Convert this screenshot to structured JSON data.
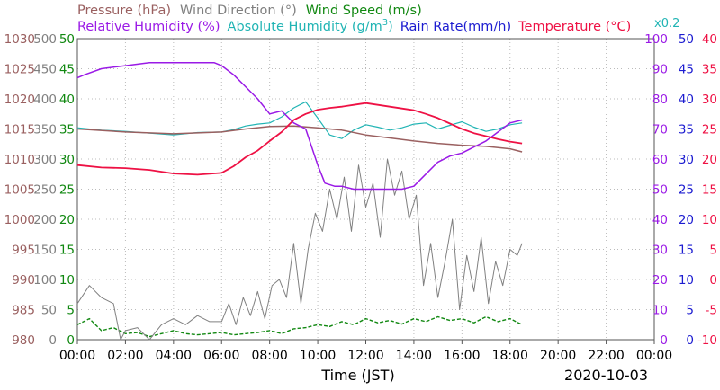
{
  "chart_data": {
    "type": "line",
    "date": "2020-10-03",
    "xlabel": "Time (JST)",
    "x_ticks": [
      "00:00",
      "02:00",
      "04:00",
      "06:00",
      "08:00",
      "10:00",
      "12:00",
      "14:00",
      "16:00",
      "18:00",
      "20:00",
      "22:00",
      "00:00"
    ],
    "x_range_hours": [
      0,
      24
    ],
    "legend_row1": [
      {
        "label": "Pressure (hPa)",
        "color": "#9a6060"
      },
      {
        "label": "Wind Direction (°)",
        "color": "#808080"
      },
      {
        "label": "Wind Speed (m/s)",
        "color": "#118811"
      }
    ],
    "legend_row2": [
      {
        "label": "Relative Humidity (%)",
        "color": "#9a1ae6"
      },
      {
        "label": "Absolute Humidity (g/m",
        "sup": "3",
        "close": ")",
        "color": "#20b4b4"
      },
      {
        "label": "Rain Rate(mm/h)",
        "color": "#1c1cd0"
      },
      {
        "label": "Temperature (°C)",
        "color": "#ee1144"
      }
    ],
    "rain_scale_note": "x0.2",
    "axes": [
      {
        "name": "pressure",
        "color": "#9a6060",
        "ticks": [
          "1030",
          "1025",
          "1020",
          "1015",
          "1010",
          "1005",
          "1000",
          "995",
          "990",
          "985",
          "980"
        ],
        "range": [
          980,
          1030
        ]
      },
      {
        "name": "wind-direction",
        "color": "#808080",
        "ticks": [
          "500",
          "450",
          "400",
          "350",
          "300",
          "250",
          "200",
          "150",
          "100",
          "50",
          "0"
        ],
        "range": [
          0,
          500
        ]
      },
      {
        "name": "wind-speed",
        "color": "#118811",
        "ticks": [
          "50",
          "45",
          "40",
          "35",
          "30",
          "25",
          "20",
          "15",
          "10",
          "5",
          "0"
        ],
        "range": [
          0,
          50
        ]
      },
      {
        "name": "relative-humidity",
        "color": "#9a1ae6",
        "ticks": [
          "100",
          "90",
          "80",
          "70",
          "60",
          "50",
          "40",
          "30",
          "20",
          "10",
          "0"
        ],
        "range": [
          0,
          100
        ]
      },
      {
        "name": "rain-rate",
        "color": "#1c1cd0",
        "ticks": [
          "50",
          "45",
          "40",
          "35",
          "30",
          "25",
          "20",
          "15",
          "10",
          "5",
          "0"
        ],
        "range": [
          0,
          50
        ]
      },
      {
        "name": "temperature",
        "color": "#ee1144",
        "ticks": [
          "40",
          "35",
          "30",
          "25",
          "20",
          "15",
          "10",
          "5",
          "0",
          "-5",
          "-10"
        ],
        "range": [
          -10,
          40
        ]
      }
    ],
    "series": [
      {
        "name": "Pressure (hPa)",
        "axis": "pressure",
        "color": "#9a6060",
        "x": [
          0,
          2,
          4,
          6,
          7,
          8,
          9,
          10,
          11,
          12,
          13,
          14,
          15,
          16,
          17,
          18,
          18.5
        ],
        "y": [
          1015.0,
          1014.5,
          1014.2,
          1014.5,
          1015.0,
          1015.4,
          1015.5,
          1015.2,
          1014.8,
          1014.0,
          1013.5,
          1013.0,
          1012.6,
          1012.3,
          1012.1,
          1011.7,
          1011.2
        ]
      },
      {
        "name": "Temperature (°C)",
        "axis": "temperature",
        "color": "#ee1144",
        "x": [
          0,
          1,
          2,
          3,
          4,
          5,
          6,
          6.5,
          7,
          7.5,
          8,
          8.5,
          9,
          9.5,
          10,
          10.5,
          11,
          11.5,
          12,
          12.5,
          13,
          13.5,
          14,
          14.5,
          15,
          15.5,
          16,
          16.5,
          17,
          17.5,
          18,
          18.5
        ],
        "y": [
          19.0,
          18.6,
          18.5,
          18.2,
          17.6,
          17.4,
          17.7,
          18.8,
          20.3,
          21.4,
          23.0,
          24.5,
          26.5,
          27.5,
          28.2,
          28.5,
          28.7,
          29.0,
          29.3,
          29.0,
          28.7,
          28.4,
          28.1,
          27.5,
          26.8,
          25.9,
          25.0,
          24.3,
          23.8,
          23.3,
          22.9,
          22.6
        ]
      },
      {
        "name": "Relative Humidity (%)",
        "axis": "relative-humidity",
        "color": "#9a1ae6",
        "x": [
          0,
          0.3,
          1,
          2,
          3,
          4,
          5,
          5.7,
          6,
          6.5,
          7,
          7.5,
          8,
          8.5,
          9,
          9.5,
          10,
          10.3,
          10.7,
          11,
          11.5,
          12,
          12.5,
          13,
          13.5,
          14,
          14.5,
          15,
          15.5,
          16,
          16.5,
          17,
          17.5,
          18,
          18.5
        ],
        "y": [
          87,
          88,
          90,
          91,
          92,
          92,
          92,
          92,
          91,
          88,
          84,
          80,
          75,
          76,
          72,
          70,
          58,
          52,
          51,
          51,
          50,
          50,
          50,
          50,
          50,
          51,
          55,
          59,
          61,
          62,
          64,
          66,
          69,
          72,
          73
        ]
      },
      {
        "name": "Absolute Humidity (g/m3)",
        "axis": "wind-speed",
        "color": "#20b4b4",
        "x": [
          0,
          1,
          2,
          3,
          4,
          5,
          6,
          6.5,
          7,
          7.5,
          8,
          8.5,
          9,
          9.5,
          10,
          10.5,
          11,
          11.5,
          12,
          12.5,
          13,
          13.5,
          14,
          14.5,
          15,
          15.5,
          16,
          16.5,
          17,
          17.5,
          18,
          18.5
        ],
        "y": [
          35.2,
          34.8,
          34.6,
          34.3,
          34.0,
          34.4,
          34.5,
          34.9,
          35.5,
          35.8,
          36.0,
          37.0,
          38.5,
          39.5,
          36.8,
          34.0,
          33.4,
          34.8,
          35.7,
          35.3,
          34.8,
          35.2,
          35.8,
          36.0,
          35.0,
          35.6,
          36.2,
          35.3,
          34.6,
          35.0,
          35.7,
          36.0
        ]
      },
      {
        "name": "Wind Direction (°)",
        "axis": "wind-direction",
        "color": "#808080",
        "x": [
          0,
          0.5,
          1,
          1.5,
          1.8,
          2,
          2.5,
          3,
          3.5,
          4,
          4.5,
          5,
          5.5,
          6,
          6.3,
          6.6,
          6.9,
          7.2,
          7.5,
          7.8,
          8.1,
          8.4,
          8.7,
          9,
          9.3,
          9.6,
          9.9,
          10.2,
          10.5,
          10.8,
          11.1,
          11.4,
          11.7,
          12,
          12.3,
          12.6,
          12.9,
          13.2,
          13.5,
          13.8,
          14.1,
          14.4,
          14.7,
          15,
          15.3,
          15.6,
          15.9,
          16.2,
          16.5,
          16.8,
          17.1,
          17.4,
          17.7,
          18,
          18.3,
          18.5
        ],
        "y": [
          60,
          90,
          70,
          60,
          0,
          15,
          20,
          0,
          25,
          35,
          25,
          40,
          30,
          30,
          60,
          25,
          70,
          40,
          80,
          35,
          90,
          100,
          70,
          160,
          60,
          150,
          210,
          180,
          250,
          200,
          270,
          180,
          290,
          220,
          260,
          170,
          300,
          240,
          280,
          200,
          240,
          90,
          160,
          70,
          130,
          200,
          50,
          140,
          80,
          170,
          60,
          130,
          90,
          150,
          140,
          160
        ]
      },
      {
        "name": "Wind Speed (m/s)",
        "axis": "wind-speed",
        "color": "#118811",
        "x": [
          0,
          0.5,
          1,
          1.5,
          2,
          2.5,
          3,
          3.5,
          4,
          4.5,
          5,
          5.5,
          6,
          6.5,
          7,
          7.5,
          8,
          8.5,
          9,
          9.5,
          10,
          10.5,
          11,
          11.5,
          12,
          12.5,
          13,
          13.5,
          14,
          14.5,
          15,
          15.5,
          16,
          16.5,
          17,
          17.5,
          18,
          18.5
        ],
        "y": [
          2.5,
          3.5,
          1.5,
          2.0,
          1.0,
          1.2,
          0.5,
          1.0,
          1.5,
          1.0,
          0.8,
          1.0,
          1.2,
          0.8,
          1.0,
          1.2,
          1.5,
          1.0,
          1.8,
          2.0,
          2.5,
          2.2,
          3.0,
          2.5,
          3.5,
          2.8,
          3.2,
          2.6,
          3.5,
          3.0,
          3.8,
          3.2,
          3.5,
          2.8,
          3.8,
          3.0,
          3.5,
          2.5
        ]
      }
    ]
  }
}
